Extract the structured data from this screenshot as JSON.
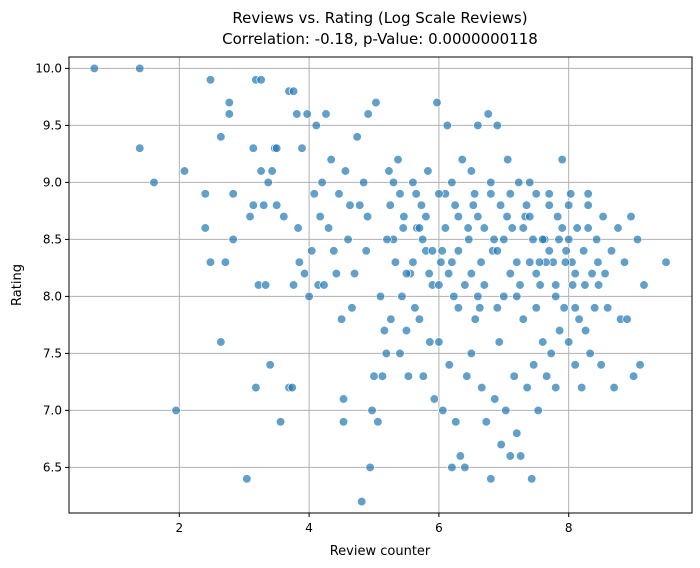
{
  "chart_data": {
    "type": "scatter",
    "title": "Reviews vs. Rating (Log Scale Reviews)",
    "subtitle": "Correlation: -0.18, p-Value: 0.0000000118",
    "xlabel": "Review counter",
    "ylabel": "Rating",
    "xlim": [
      0.3,
      9.9
    ],
    "ylim": [
      6.1,
      10.1
    ],
    "xticks": [
      2,
      4,
      6,
      8
    ],
    "yticks": [
      6.5,
      7.0,
      7.5,
      8.0,
      8.5,
      9.0,
      9.5,
      10.0
    ],
    "xtick_labels": [
      "2",
      "4",
      "6",
      "8"
    ],
    "ytick_labels": [
      "6.5",
      "7.0",
      "7.5",
      "8.0",
      "8.5",
      "9.0",
      "9.5",
      "10.0"
    ],
    "grid": true,
    "colors": {
      "point_fill": "#1f77b4",
      "point_edge": "#ffffff",
      "grid": "#b0b0b0"
    },
    "points": [
      [
        0.69,
        10.0
      ],
      [
        1.39,
        10.0
      ],
      [
        1.39,
        9.3
      ],
      [
        1.61,
        9.0
      ],
      [
        1.95,
        7.0
      ],
      [
        2.08,
        9.1
      ],
      [
        2.4,
        8.6
      ],
      [
        2.4,
        8.9
      ],
      [
        2.48,
        9.9
      ],
      [
        2.48,
        8.3
      ],
      [
        2.64,
        9.4
      ],
      [
        2.64,
        7.6
      ],
      [
        2.71,
        8.3
      ],
      [
        2.77,
        9.6
      ],
      [
        2.77,
        9.7
      ],
      [
        2.83,
        8.5
      ],
      [
        2.83,
        8.9
      ],
      [
        3.04,
        6.4
      ],
      [
        3.09,
        8.7
      ],
      [
        3.14,
        8.8
      ],
      [
        3.14,
        9.3
      ],
      [
        3.18,
        7.2
      ],
      [
        3.18,
        9.9
      ],
      [
        3.22,
        8.1
      ],
      [
        3.26,
        9.9
      ],
      [
        3.26,
        9.1
      ],
      [
        3.3,
        8.8
      ],
      [
        3.33,
        8.1
      ],
      [
        3.37,
        9.0
      ],
      [
        3.4,
        7.4
      ],
      [
        3.43,
        9.1
      ],
      [
        3.47,
        9.3
      ],
      [
        3.5,
        9.3
      ],
      [
        3.5,
        8.8
      ],
      [
        3.56,
        6.9
      ],
      [
        3.61,
        8.7
      ],
      [
        3.69,
        9.8
      ],
      [
        3.69,
        7.2
      ],
      [
        3.74,
        7.2
      ],
      [
        3.76,
        9.8
      ],
      [
        3.76,
        8.1
      ],
      [
        3.81,
        9.6
      ],
      [
        3.83,
        8.6
      ],
      [
        3.85,
        8.3
      ],
      [
        3.89,
        9.3
      ],
      [
        3.93,
        8.2
      ],
      [
        3.97,
        9.6
      ],
      [
        4.0,
        8.0
      ],
      [
        4.04,
        8.4
      ],
      [
        4.08,
        8.9
      ],
      [
        4.11,
        9.5
      ],
      [
        4.14,
        8.1
      ],
      [
        4.17,
        8.7
      ],
      [
        4.2,
        9.0
      ],
      [
        4.23,
        8.1
      ],
      [
        4.26,
        9.6
      ],
      [
        4.3,
        8.6
      ],
      [
        4.34,
        9.2
      ],
      [
        4.38,
        8.4
      ],
      [
        4.42,
        8.2
      ],
      [
        4.46,
        8.9
      ],
      [
        4.5,
        7.8
      ],
      [
        4.53,
        6.9
      ],
      [
        4.53,
        7.1
      ],
      [
        4.56,
        9.1
      ],
      [
        4.6,
        8.5
      ],
      [
        4.63,
        8.8
      ],
      [
        4.66,
        7.9
      ],
      [
        4.7,
        8.2
      ],
      [
        4.74,
        9.4
      ],
      [
        4.78,
        8.8
      ],
      [
        4.81,
        6.2
      ],
      [
        4.84,
        9.0
      ],
      [
        4.88,
        8.4
      ],
      [
        4.91,
        9.6
      ],
      [
        4.94,
        6.5
      ],
      [
        4.97,
        7.0
      ],
      [
        5.0,
        7.3
      ],
      [
        5.03,
        9.7
      ],
      [
        5.06,
        6.9
      ],
      [
        5.1,
        8.0
      ],
      [
        5.13,
        7.3
      ],
      [
        5.16,
        7.7
      ],
      [
        5.19,
        7.5
      ],
      [
        5.23,
        9.1
      ],
      [
        5.26,
        7.8
      ],
      [
        5.3,
        8.5
      ],
      [
        5.33,
        8.3
      ],
      [
        5.37,
        9.2
      ],
      [
        5.4,
        7.5
      ],
      [
        5.43,
        8.0
      ],
      [
        5.46,
        8.7
      ],
      [
        5.5,
        7.7
      ],
      [
        5.53,
        7.3
      ],
      [
        5.56,
        8.2
      ],
      [
        5.6,
        9.0
      ],
      [
        5.63,
        7.9
      ],
      [
        5.66,
        8.6
      ],
      [
        5.7,
        7.8
      ],
      [
        5.73,
        8.8
      ],
      [
        5.76,
        7.3
      ],
      [
        5.8,
        8.4
      ],
      [
        5.83,
        9.1
      ],
      [
        5.86,
        7.6
      ],
      [
        5.9,
        8.1
      ],
      [
        5.93,
        7.1
      ],
      [
        5.97,
        9.7
      ],
      [
        6.0,
        7.6
      ],
      [
        6.03,
        8.3
      ],
      [
        6.06,
        7.0
      ],
      [
        6.1,
        8.9
      ],
      [
        6.13,
        9.5
      ],
      [
        6.16,
        7.4
      ],
      [
        6.2,
        6.5
      ],
      [
        6.23,
        8.0
      ],
      [
        6.26,
        6.9
      ],
      [
        6.3,
        8.7
      ],
      [
        6.33,
        6.6
      ],
      [
        6.36,
        9.2
      ],
      [
        6.4,
        6.5
      ],
      [
        6.43,
        7.3
      ],
      [
        6.46,
        8.5
      ],
      [
        6.5,
        7.5
      ],
      [
        6.53,
        8.8
      ],
      [
        6.56,
        7.8
      ],
      [
        6.6,
        9.5
      ],
      [
        6.63,
        7.9
      ],
      [
        6.66,
        7.2
      ],
      [
        6.7,
        8.1
      ],
      [
        6.73,
        6.9
      ],
      [
        6.76,
        9.6
      ],
      [
        6.8,
        6.4
      ],
      [
        6.83,
        8.4
      ],
      [
        6.86,
        7.1
      ],
      [
        6.9,
        9.5
      ],
      [
        6.93,
        7.6
      ],
      [
        6.96,
        6.7
      ],
      [
        7.0,
        8.0
      ],
      [
        7.03,
        7.0
      ],
      [
        7.06,
        9.2
      ],
      [
        7.1,
        6.6
      ],
      [
        7.13,
        8.6
      ],
      [
        7.16,
        7.3
      ],
      [
        7.2,
        6.8
      ],
      [
        7.23,
        9.0
      ],
      [
        7.26,
        6.6
      ],
      [
        7.3,
        7.8
      ],
      [
        7.33,
        8.7
      ],
      [
        7.36,
        7.2
      ],
      [
        7.4,
        8.3
      ],
      [
        7.43,
        6.4
      ],
      [
        7.46,
        7.4
      ],
      [
        7.5,
        8.9
      ],
      [
        7.53,
        7.0
      ],
      [
        7.56,
        8.1
      ],
      [
        7.6,
        7.6
      ],
      [
        7.63,
        8.5
      ],
      [
        7.66,
        7.3
      ],
      [
        7.7,
        8.9
      ],
      [
        7.73,
        7.5
      ],
      [
        7.76,
        8.3
      ],
      [
        7.8,
        7.2
      ],
      [
        7.83,
        8.7
      ],
      [
        7.86,
        7.7
      ],
      [
        7.9,
        9.2
      ],
      [
        7.93,
        7.9
      ],
      [
        7.96,
        8.4
      ],
      [
        8.0,
        7.6
      ],
      [
        8.03,
        8.9
      ],
      [
        8.06,
        8.1
      ],
      [
        8.1,
        7.4
      ],
      [
        8.13,
        8.6
      ],
      [
        8.16,
        7.8
      ],
      [
        8.2,
        7.2
      ],
      [
        8.23,
        8.4
      ],
      [
        8.26,
        7.7
      ],
      [
        8.3,
        8.9
      ],
      [
        8.33,
        7.5
      ],
      [
        8.36,
        8.2
      ],
      [
        8.4,
        7.9
      ],
      [
        8.43,
        8.5
      ],
      [
        8.46,
        8.1
      ],
      [
        8.5,
        7.4
      ],
      [
        8.53,
        8.7
      ],
      [
        8.56,
        8.2
      ],
      [
        8.6,
        7.9
      ],
      [
        8.66,
        8.4
      ],
      [
        8.7,
        7.2
      ],
      [
        8.76,
        8.6
      ],
      [
        8.8,
        7.8
      ],
      [
        8.86,
        8.3
      ],
      [
        8.9,
        7.8
      ],
      [
        8.96,
        8.7
      ],
      [
        9.0,
        7.3
      ],
      [
        9.06,
        8.5
      ],
      [
        9.1,
        7.4
      ],
      [
        9.16,
        8.1
      ],
      [
        9.5,
        8.3
      ],
      [
        4.9,
        8.7
      ],
      [
        5.2,
        8.5
      ],
      [
        5.4,
        8.9
      ],
      [
        5.6,
        8.3
      ],
      [
        5.8,
        8.7
      ],
      [
        6.0,
        8.9
      ],
      [
        6.2,
        8.3
      ],
      [
        6.4,
        8.1
      ],
      [
        6.6,
        8.7
      ],
      [
        6.8,
        8.9
      ],
      [
        7.0,
        8.5
      ],
      [
        7.2,
        8.3
      ],
      [
        7.4,
        8.7
      ],
      [
        7.6,
        8.5
      ],
      [
        7.8,
        8.1
      ],
      [
        8.0,
        8.5
      ],
      [
        5.3,
        9.0
      ],
      [
        5.5,
        8.2
      ],
      [
        5.7,
        8.6
      ],
      [
        5.9,
        8.4
      ],
      [
        6.1,
        8.6
      ],
      [
        6.3,
        8.4
      ],
      [
        6.5,
        8.2
      ],
      [
        6.7,
        8.6
      ],
      [
        6.9,
        8.4
      ],
      [
        7.1,
        8.2
      ],
      [
        7.3,
        8.6
      ],
      [
        7.5,
        8.2
      ],
      [
        7.7,
        8.4
      ],
      [
        7.9,
        8.6
      ],
      [
        8.1,
        8.2
      ],
      [
        8.3,
        8.6
      ],
      [
        5.45,
        8.6
      ],
      [
        5.65,
        8.9
      ],
      [
        5.85,
        8.2
      ],
      [
        6.05,
        8.4
      ],
      [
        6.25,
        8.8
      ],
      [
        6.45,
        8.6
      ],
      [
        6.65,
        8.3
      ],
      [
        6.85,
        8.5
      ],
      [
        7.05,
        8.7
      ],
      [
        7.25,
        8.1
      ],
      [
        7.45,
        8.5
      ],
      [
        7.65,
        8.3
      ],
      [
        7.85,
        8.5
      ],
      [
        8.05,
        8.3
      ],
      [
        8.25,
        8.1
      ],
      [
        8.45,
        8.3
      ],
      [
        5.25,
        8.8
      ],
      [
        5.75,
        8.5
      ],
      [
        6.15,
        8.2
      ],
      [
        6.55,
        8.9
      ],
      [
        6.95,
        8.8
      ],
      [
        7.35,
        8.8
      ],
      [
        7.55,
        8.3
      ],
      [
        7.95,
        8.3
      ],
      [
        6.0,
        8.1
      ],
      [
        6.3,
        7.9
      ],
      [
        6.6,
        8.0
      ],
      [
        6.9,
        7.9
      ],
      [
        7.2,
        8.0
      ],
      [
        7.5,
        7.9
      ],
      [
        7.8,
        8.0
      ],
      [
        8.1,
        7.9
      ],
      [
        6.2,
        9.0
      ],
      [
        6.5,
        9.1
      ],
      [
        6.8,
        9.0
      ],
      [
        7.1,
        8.9
      ],
      [
        7.4,
        9.0
      ],
      [
        7.7,
        8.8
      ],
      [
        8.0,
        8.8
      ],
      [
        8.3,
        8.8
      ]
    ]
  }
}
